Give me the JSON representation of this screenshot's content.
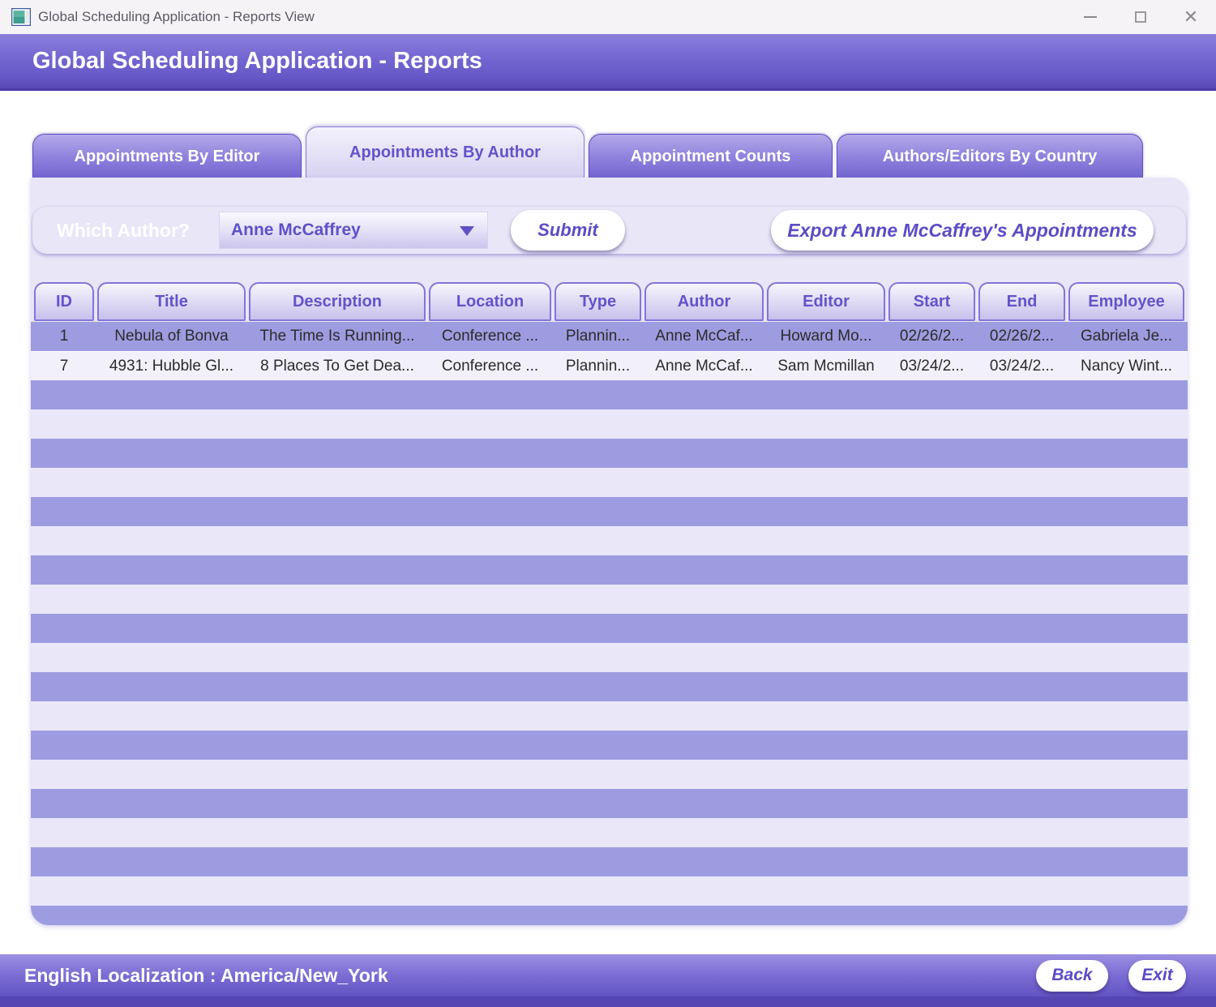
{
  "window": {
    "title": "Global Scheduling Application - Reports View"
  },
  "banner": {
    "title": "Global Scheduling Application - Reports"
  },
  "tabs": [
    {
      "label": "Appointments By Editor",
      "active": false
    },
    {
      "label": "Appointments By Author",
      "active": true
    },
    {
      "label": "Appointment Counts",
      "active": false
    },
    {
      "label": "Authors/Editors By Country",
      "active": false
    }
  ],
  "filter": {
    "label": "Which Author?",
    "dropdown_value": "Anne McCaffrey",
    "submit_label": "Submit",
    "export_label": "Export Anne McCaffrey's Appointments"
  },
  "table": {
    "columns": [
      "ID",
      "Title",
      "Description",
      "Location",
      "Type",
      "Author",
      "Editor",
      "Start",
      "End",
      "Employee"
    ],
    "rows": [
      [
        "1",
        "Nebula of Bonva",
        "The Time Is Running...",
        "Conference ...",
        "Plannin...",
        "Anne McCaf...",
        "Howard Mo...",
        "02/26/2...",
        "02/26/2...",
        "Gabriela Je..."
      ],
      [
        "7",
        "4931: Hubble Gl...",
        "8 Places To Get Dea...",
        "Conference ...",
        "Plannin...",
        "Anne McCaf...",
        "Sam Mcmillan",
        "03/24/2...",
        "03/24/2...",
        "Nancy Wint..."
      ]
    ],
    "empty_row_count": 19
  },
  "footer": {
    "status": "English Localization : America/New_York",
    "back_label": "Back",
    "exit_label": "Exit"
  },
  "colors": {
    "accent_purple": "#6e5fce",
    "stripe_purple": "#9e9ce0",
    "stripe_light": "#eae8f8",
    "panel_background": "#e8e6f7",
    "pill_text": "#5b4cc6",
    "banner_dark_edge": "#4a3aa8"
  },
  "icons": {
    "app_icon": "application-window",
    "minimize": "minimize-icon",
    "maximize": "maximize-icon",
    "close": "close-icon",
    "dropdown": "chevron-down-icon"
  }
}
